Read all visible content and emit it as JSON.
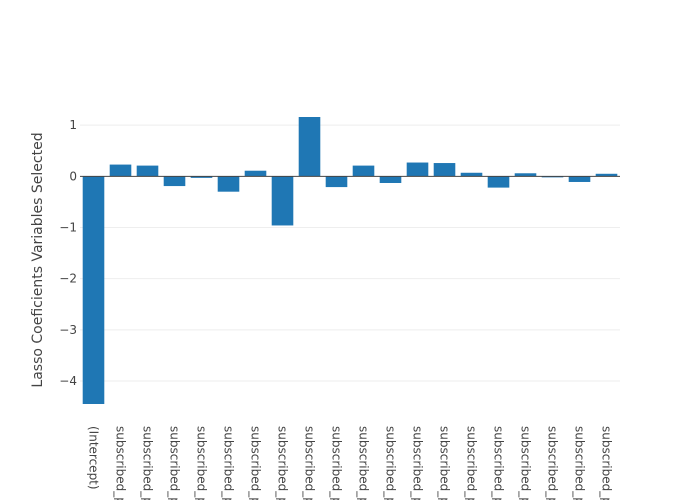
{
  "chart_data": {
    "type": "bar",
    "title": "",
    "xlabel": "",
    "ylabel": "Lasso Coeficients Variables Selected",
    "categories": [
      "(Intercept)",
      "subscribed_p",
      "subscribed_p",
      "subscribed_p",
      "subscribed_p",
      "subscribed_p",
      "subscribed_p",
      "subscribed_p",
      "subscribed_p",
      "subscribed_p",
      "subscribed_p",
      "subscribed_p",
      "subscribed_p",
      "subscribed_p",
      "subscribed_p",
      "subscribed_p",
      "subscribed_p",
      "subscribed_p",
      "subscribed_p",
      "subscribed_p"
    ],
    "values": [
      -4.45,
      0.23,
      0.21,
      -0.19,
      -0.03,
      -0.3,
      0.11,
      -0.96,
      1.16,
      -0.21,
      0.21,
      -0.13,
      0.27,
      0.26,
      0.07,
      -0.22,
      0.06,
      -0.02,
      -0.11,
      0.05
    ],
    "yticks": [
      1,
      0,
      -1,
      -2,
      -3,
      -4
    ],
    "ytick_labels": [
      "1",
      "0",
      "−1",
      "−2",
      "−3",
      "−4"
    ],
    "ylim": [
      -4.45,
      1.16
    ],
    "grid": true,
    "bar_color": "#1f77b4"
  }
}
